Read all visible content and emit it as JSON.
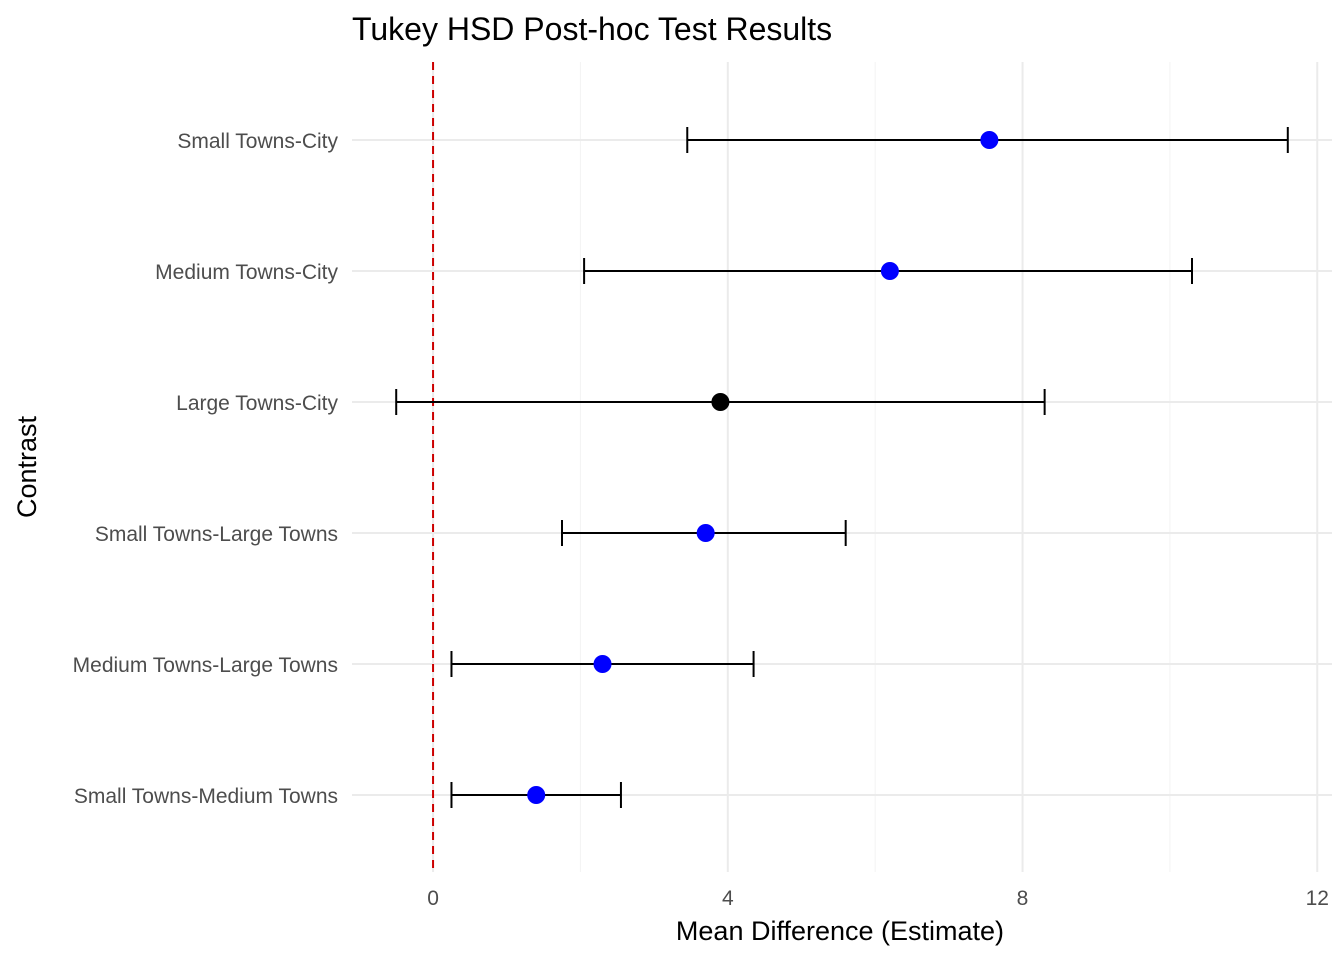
{
  "chart_data": {
    "type": "errorbar",
    "title": "Tukey HSD Post-hoc Test Results",
    "xlabel": "Mean Difference (Estimate)",
    "ylabel": "Contrast",
    "xlim": [
      -1.1,
      12.2
    ],
    "x_ticks": [
      0,
      4,
      8,
      12
    ],
    "x_tick_labels": [
      "0",
      "4",
      "8",
      "12"
    ],
    "reference_line": {
      "x": 0,
      "color": "#cc0000",
      "style": "dashed"
    },
    "colors": {
      "significant": "#0000ff",
      "not_significant": "#000000",
      "grid": "#ebebeb"
    },
    "categories": [
      "Small Towns-Medium Towns",
      "Medium Towns-Large Towns",
      "Small Towns-Large Towns",
      "Large Towns-City",
      "Medium Towns-City",
      "Small Towns-City"
    ],
    "points": [
      {
        "contrast": "Small Towns-Medium Towns",
        "estimate": 1.4,
        "lower": 0.25,
        "upper": 2.55,
        "significant": true
      },
      {
        "contrast": "Medium Towns-Large Towns",
        "estimate": 2.3,
        "lower": 0.25,
        "upper": 4.35,
        "significant": true
      },
      {
        "contrast": "Small Towns-Large Towns",
        "estimate": 3.7,
        "lower": 1.75,
        "upper": 5.6,
        "significant": true
      },
      {
        "contrast": "Large Towns-City",
        "estimate": 3.9,
        "lower": -0.5,
        "upper": 8.3,
        "significant": false
      },
      {
        "contrast": "Medium Towns-City",
        "estimate": 6.2,
        "lower": 2.05,
        "upper": 10.3,
        "significant": true
      },
      {
        "contrast": "Small Towns-City",
        "estimate": 7.55,
        "lower": 3.45,
        "upper": 11.6,
        "significant": true
      }
    ],
    "grid": true,
    "legend": "none"
  }
}
